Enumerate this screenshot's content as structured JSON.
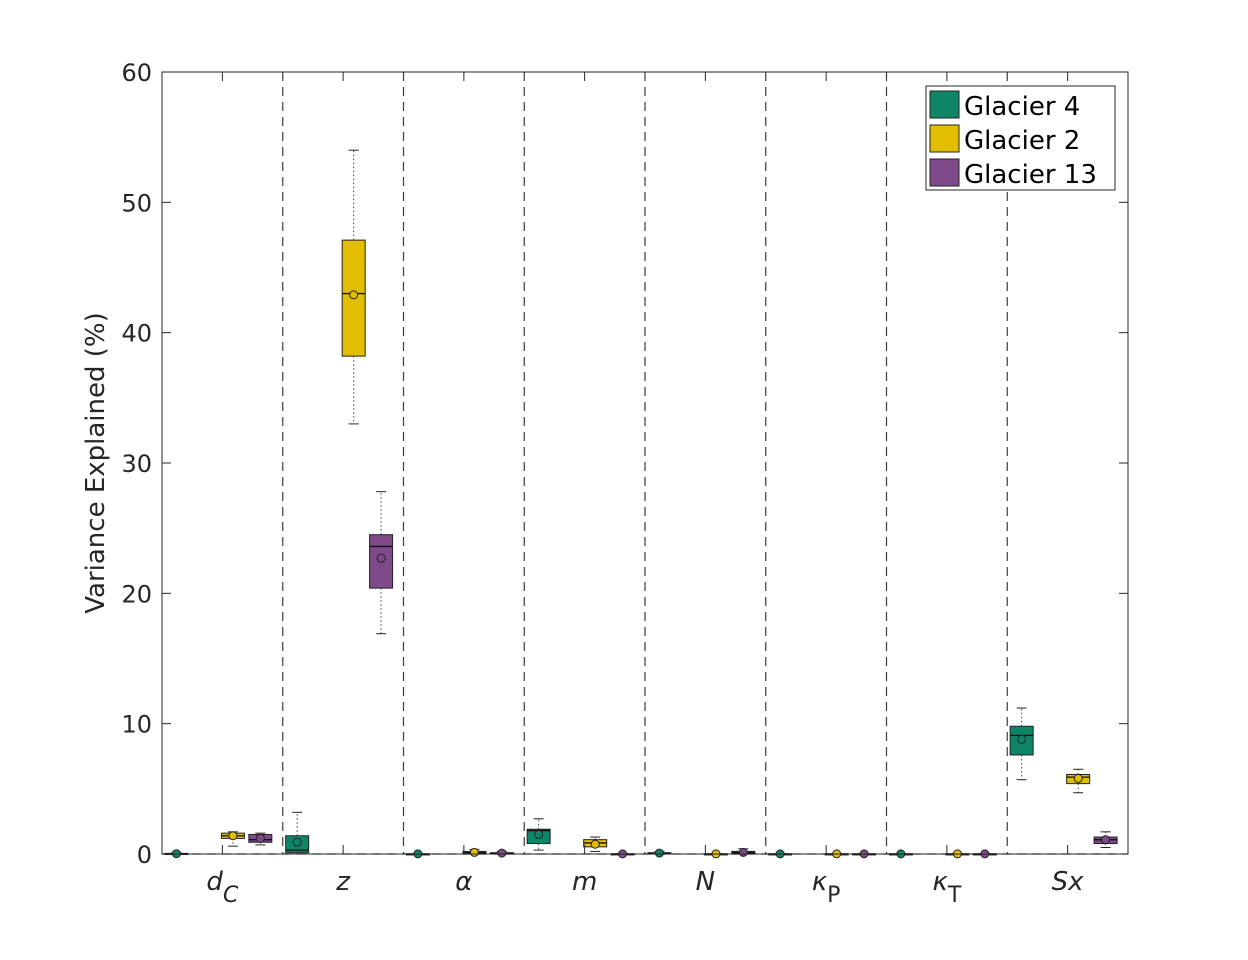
{
  "chart_data": {
    "type": "box",
    "title": "",
    "xlabel": "",
    "ylabel": "Variance Explained (%)",
    "ylim": [
      0,
      60
    ],
    "yticks": [
      0,
      10,
      20,
      30,
      40,
      50,
      60
    ],
    "grid": false,
    "legend_position": "top-right",
    "categories": [
      "dC",
      "z",
      "α",
      "m",
      "N",
      "κP",
      "κT",
      "Sx"
    ],
    "category_labels": [
      {
        "base": "d",
        "sub": "C"
      },
      {
        "base": "z",
        "sub": ""
      },
      {
        "base": "α",
        "sub": ""
      },
      {
        "base": "m",
        "sub": ""
      },
      {
        "base": "N",
        "sub": ""
      },
      {
        "base": "κ",
        "sub": "P"
      },
      {
        "base": "κ",
        "sub": "T"
      },
      {
        "base": "Sx",
        "sub": ""
      }
    ],
    "series": [
      {
        "name": "Glacier 4",
        "color": "#0e8567",
        "boxes": [
          {
            "min": 0,
            "q1": 0,
            "median": 0,
            "q3": 0.05,
            "max": 0.1,
            "mean": 0.02
          },
          {
            "min": 0,
            "q1": 0.1,
            "median": 0.3,
            "q3": 1.4,
            "max": 3.2,
            "mean": 0.9
          },
          {
            "min": 0,
            "q1": 0,
            "median": 0,
            "q3": 0.02,
            "max": 0.05,
            "mean": 0.01
          },
          {
            "min": 0.3,
            "q1": 0.8,
            "median": 1.8,
            "q3": 1.9,
            "max": 2.7,
            "mean": 1.5
          },
          {
            "min": 0,
            "q1": 0.02,
            "median": 0.05,
            "q3": 0.1,
            "max": 0.2,
            "mean": 0.07
          },
          {
            "min": 0,
            "q1": 0,
            "median": 0,
            "q3": 0.02,
            "max": 0.05,
            "mean": 0.01
          },
          {
            "min": 0,
            "q1": 0,
            "median": 0,
            "q3": 0.02,
            "max": 0.05,
            "mean": 0.01
          },
          {
            "min": 5.7,
            "q1": 7.6,
            "median": 9.1,
            "q3": 9.8,
            "max": 11.2,
            "mean": 8.8
          }
        ]
      },
      {
        "name": "Glacier 2",
        "color": "#e3bd00",
        "boxes": [
          {
            "min": 0.6,
            "q1": 1.2,
            "median": 1.4,
            "q3": 1.6,
            "max": 1.7,
            "mean": 1.4
          },
          {
            "min": 33,
            "q1": 38.2,
            "median": 43,
            "q3": 47.1,
            "max": 54,
            "mean": 42.9
          },
          {
            "min": 0,
            "q1": 0.05,
            "median": 0.1,
            "q3": 0.2,
            "max": 0.35,
            "mean": 0.12
          },
          {
            "min": 0.2,
            "q1": 0.55,
            "median": 0.85,
            "q3": 1.1,
            "max": 1.3,
            "mean": 0.75
          },
          {
            "min": 0,
            "q1": 0,
            "median": 0,
            "q3": 0.02,
            "max": 0.05,
            "mean": 0.01
          },
          {
            "min": 0,
            "q1": 0,
            "median": 0,
            "q3": 0.02,
            "max": 0.05,
            "mean": 0.01
          },
          {
            "min": 0,
            "q1": 0,
            "median": 0,
            "q3": 0.02,
            "max": 0.05,
            "mean": 0.01
          },
          {
            "min": 4.7,
            "q1": 5.4,
            "median": 5.9,
            "q3": 6.1,
            "max": 6.5,
            "mean": 5.8
          }
        ]
      },
      {
        "name": "Glacier 13",
        "color": "#7e4a8a",
        "boxes": [
          {
            "min": 0.7,
            "q1": 0.9,
            "median": 1.1,
            "q3": 1.5,
            "max": 1.6,
            "mean": 1.2
          },
          {
            "min": 16.9,
            "q1": 20.4,
            "median": 23.6,
            "q3": 24.5,
            "max": 27.8,
            "mean": 22.7
          },
          {
            "min": 0,
            "q1": 0.02,
            "median": 0.05,
            "q3": 0.1,
            "max": 0.2,
            "mean": 0.07
          },
          {
            "min": 0,
            "q1": 0,
            "median": 0,
            "q3": 0.02,
            "max": 0.05,
            "mean": 0.01
          },
          {
            "min": 0,
            "q1": 0.05,
            "median": 0.1,
            "q3": 0.2,
            "max": 0.4,
            "mean": 0.12
          },
          {
            "min": 0,
            "q1": 0,
            "median": 0,
            "q3": 0.02,
            "max": 0.05,
            "mean": 0.01
          },
          {
            "min": 0,
            "q1": 0,
            "median": 0,
            "q3": 0.02,
            "max": 0.05,
            "mean": 0.01
          },
          {
            "min": 0.5,
            "q1": 0.8,
            "median": 1.1,
            "q3": 1.3,
            "max": 1.7,
            "mean": 1.1
          }
        ]
      }
    ]
  }
}
